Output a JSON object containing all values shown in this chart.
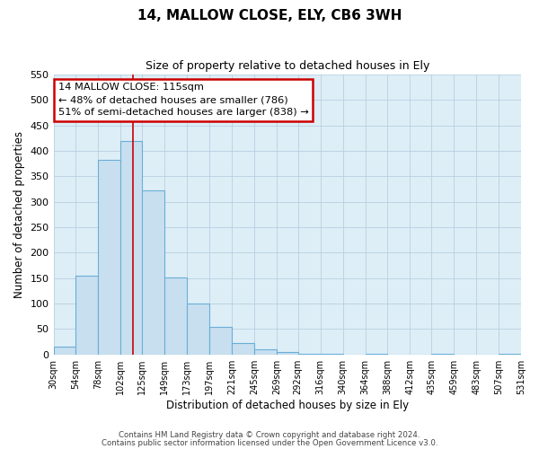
{
  "title": "14, MALLOW CLOSE, ELY, CB6 3WH",
  "subtitle": "Size of property relative to detached houses in Ely",
  "xlabel": "Distribution of detached houses by size in Ely",
  "ylabel": "Number of detached properties",
  "bar_color": "#c8dff0",
  "bar_edge_color": "#6baed6",
  "bin_labels": [
    "30sqm",
    "54sqm",
    "78sqm",
    "102sqm",
    "125sqm",
    "149sqm",
    "173sqm",
    "197sqm",
    "221sqm",
    "245sqm",
    "269sqm",
    "292sqm",
    "316sqm",
    "340sqm",
    "364sqm",
    "388sqm",
    "412sqm",
    "435sqm",
    "459sqm",
    "483sqm",
    "507sqm"
  ],
  "bar_values": [
    15,
    155,
    382,
    420,
    322,
    152,
    100,
    55,
    22,
    10,
    4,
    2,
    1,
    0,
    1,
    0,
    0,
    1,
    0,
    0,
    1
  ],
  "ylim": [
    0,
    550
  ],
  "yticks": [
    0,
    50,
    100,
    150,
    200,
    250,
    300,
    350,
    400,
    450,
    500,
    550
  ],
  "annotation_title": "14 MALLOW CLOSE: 115sqm",
  "annotation_line1": "← 48% of detached houses are smaller (786)",
  "annotation_line2": "51% of semi-detached houses are larger (838) →",
  "annotation_box_color": "#ffffff",
  "annotation_box_edge": "#cc0000",
  "property_line_x": 115,
  "property_line_color": "#cc0000",
  "footnote1": "Contains HM Land Registry data © Crown copyright and database right 2024.",
  "footnote2": "Contains public sector information licensed under the Open Government Licence v3.0.",
  "bg_color": "#ddeef7",
  "grid_color": "#b8cfe0"
}
